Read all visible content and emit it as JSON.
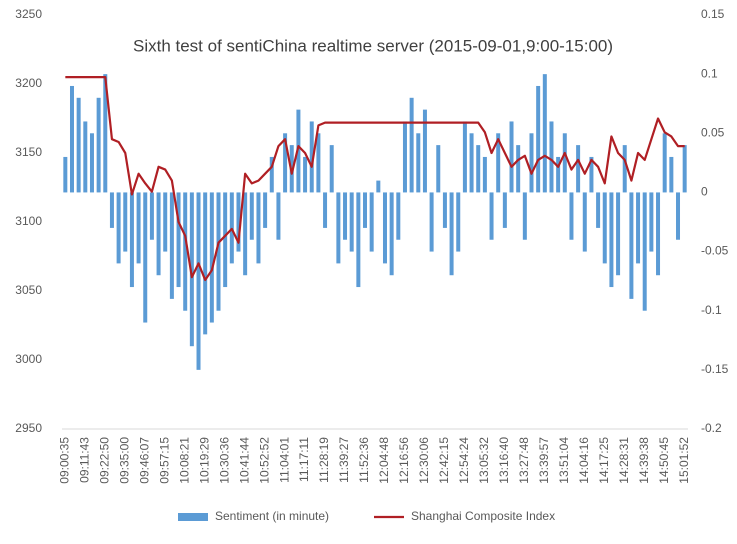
{
  "chart_data": {
    "type": "combo",
    "title": "Sixth test of sentiChina realtime server (2015-09-01,9:00-15:00)",
    "categories": [
      "09:00:35",
      null,
      null,
      "09:11:43",
      null,
      null,
      "09:22:50",
      null,
      null,
      "09:35:00",
      null,
      null,
      "09:46:07",
      null,
      null,
      "09:57:15",
      null,
      null,
      "10:08:21",
      null,
      null,
      "10:19:29",
      null,
      null,
      "10:30:36",
      null,
      null,
      "10:41:44",
      null,
      null,
      "10:52:52",
      null,
      null,
      "11:04:01",
      null,
      null,
      "11:17:11",
      null,
      null,
      "11:28:19",
      null,
      null,
      "11:39:27",
      null,
      null,
      "11:52:36",
      null,
      null,
      "12:04:48",
      null,
      null,
      "12:16:56",
      null,
      null,
      "12:30:06",
      null,
      null,
      "12:42:15",
      null,
      null,
      "12:54:24",
      null,
      null,
      "13:05:32",
      null,
      null,
      "13:16:40",
      null,
      null,
      "13:27:48",
      null,
      null,
      "13:39:57",
      null,
      null,
      "13:51:04",
      null,
      null,
      "14:04:16",
      null,
      null,
      "14:17:25",
      null,
      null,
      "14:28:31",
      null,
      null,
      "14:39:38",
      null,
      null,
      "14:50:45",
      null,
      null,
      "15:01:52"
    ],
    "series": [
      {
        "name": "Sentiment (in minute)",
        "type": "bar",
        "axis": "y2",
        "color": "#5b9bd5",
        "values": [
          0.03,
          0.09,
          0.08,
          0.06,
          0.05,
          0.08,
          0.1,
          -0.03,
          -0.06,
          -0.05,
          -0.08,
          -0.06,
          -0.11,
          -0.04,
          -0.07,
          -0.05,
          -0.09,
          -0.08,
          -0.1,
          -0.13,
          -0.15,
          -0.12,
          -0.11,
          -0.1,
          -0.08,
          -0.06,
          -0.05,
          -0.07,
          -0.04,
          -0.06,
          -0.03,
          0.03,
          -0.04,
          0.05,
          0.04,
          0.07,
          0.03,
          0.06,
          0.05,
          -0.03,
          0.04,
          -0.06,
          -0.04,
          -0.05,
          -0.08,
          -0.03,
          -0.05,
          0.01,
          -0.06,
          -0.07,
          -0.04,
          0.06,
          0.08,
          0.05,
          0.07,
          -0.05,
          0.04,
          -0.03,
          -0.07,
          -0.05,
          0.06,
          0.05,
          0.04,
          0.03,
          -0.04,
          0.05,
          -0.03,
          0.06,
          0.04,
          -0.04,
          0.05,
          0.09,
          0.1,
          0.06,
          0.03,
          0.05,
          -0.04,
          0.04,
          -0.05,
          0.03,
          -0.03,
          -0.06,
          -0.08,
          -0.07,
          0.04,
          -0.09,
          -0.06,
          -0.1,
          -0.05,
          -0.07,
          0.05,
          0.03,
          -0.04,
          0.04
        ]
      },
      {
        "name": "Shanghai Composite Index",
        "type": "line",
        "color": "#b01f24",
        "values": [
          3205,
          3205,
          3205,
          3205,
          3205,
          3205,
          3205,
          3160,
          3158,
          3150,
          3120,
          3135,
          3128,
          3122,
          3140,
          3138,
          3130,
          3100,
          3090,
          3060,
          3070,
          3058,
          3065,
          3085,
          3090,
          3095,
          3085,
          3135,
          3128,
          3130,
          3135,
          3140,
          3155,
          3160,
          3135,
          3155,
          3150,
          3140,
          3170,
          3172,
          3172,
          3172,
          3172,
          3172,
          3172,
          3172,
          3172,
          3172,
          3172,
          3172,
          3172,
          3172,
          3172,
          3172,
          3172,
          3172,
          3172,
          3172,
          3172,
          3172,
          3172,
          3172,
          3172,
          3165,
          3150,
          3160,
          3150,
          3140,
          3145,
          3148,
          3135,
          3145,
          3148,
          3145,
          3140,
          3150,
          3138,
          3145,
          3135,
          3145,
          3140,
          3128,
          3162,
          3150,
          3145,
          3130,
          3150,
          3145,
          3160,
          3175,
          3165,
          3162,
          3155,
          3155
        ]
      }
    ],
    "ylim": [
      2950,
      3250
    ],
    "yticks": [
      2950,
      3000,
      3050,
      3100,
      3150,
      3200,
      3250
    ],
    "y2lim": [
      -0.2,
      0.15
    ],
    "y2ticks": [
      -0.2,
      -0.15,
      -0.1,
      -0.05,
      0,
      0.05,
      0.1,
      0.15
    ],
    "legend": "bottom"
  }
}
